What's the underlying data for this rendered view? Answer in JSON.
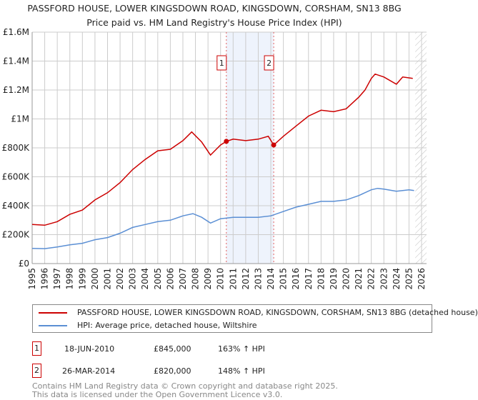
{
  "title": "PASSFORD HOUSE, LOWER KINGSDOWN ROAD, KINGSDOWN, CORSHAM, SN13 8BG",
  "subtitle": "Price paid vs. HM Land Registry's House Price Index (HPI)",
  "colors": {
    "property": "#cc0000",
    "hpi": "#5b8fd4",
    "shade": "#eef3fc"
  },
  "chart_data": {
    "type": "line",
    "title": "PASSFORD HOUSE, LOWER KINGSDOWN ROAD, KINGSDOWN, CORSHAM, SN13 8BG",
    "xlim": [
      1995,
      2026
    ],
    "ylim": [
      0,
      1600000
    ],
    "y_ticks": [
      {
        "v": 0,
        "label": "£0"
      },
      {
        "v": 200000,
        "label": "£200K"
      },
      {
        "v": 400000,
        "label": "£400K"
      },
      {
        "v": 600000,
        "label": "£600K"
      },
      {
        "v": 800000,
        "label": "£800K"
      },
      {
        "v": 1000000,
        "label": "£1M"
      },
      {
        "v": 1200000,
        "label": "£1.2M"
      },
      {
        "v": 1400000,
        "label": "£1.4M"
      },
      {
        "v": 1600000,
        "label": "£1.6M"
      }
    ],
    "x_ticks": [
      "1995",
      "1996",
      "1997",
      "1998",
      "1999",
      "2000",
      "2001",
      "2002",
      "2003",
      "2004",
      "2005",
      "2006",
      "2007",
      "2008",
      "2009",
      "2010",
      "2011",
      "2012",
      "2013",
      "2014",
      "2015",
      "2016",
      "2017",
      "2018",
      "2019",
      "2020",
      "2021",
      "2022",
      "2023",
      "2024",
      "2025",
      "2026"
    ],
    "grid": true,
    "shaded_range": [
      2010.46,
      2014.23
    ],
    "forecast_hatch_from": 2025.5,
    "series": [
      {
        "name": "PASSFORD HOUSE, LOWER KINGSDOWN ROAD, KINGSDOWN, CORSHAM, SN13 8BG (detached house)",
        "color": "#cc0000",
        "x": [
          1995,
          1996,
          1997,
          1998,
          1999,
          2000,
          2001,
          2002,
          2003,
          2004,
          2005,
          2006,
          2007,
          2007.7,
          2008.5,
          2009.2,
          2010,
          2010.46,
          2011,
          2012,
          2013,
          2013.8,
          2014.23,
          2015,
          2016,
          2017,
          2018,
          2019,
          2020,
          2021,
          2021.5,
          2022,
          2022.3,
          2023,
          2024,
          2024.5,
          2025.3
        ],
        "y": [
          270000,
          265000,
          290000,
          340000,
          370000,
          440000,
          490000,
          560000,
          650000,
          720000,
          780000,
          790000,
          850000,
          910000,
          840000,
          750000,
          820000,
          845000,
          860000,
          850000,
          860000,
          880000,
          820000,
          880000,
          950000,
          1020000,
          1060000,
          1050000,
          1070000,
          1150000,
          1200000,
          1280000,
          1310000,
          1290000,
          1240000,
          1290000,
          1280000
        ]
      },
      {
        "name": "HPI: Average price, detached house, Wiltshire",
        "color": "#5b8fd4",
        "x": [
          1995,
          1996,
          1997,
          1998,
          1999,
          2000,
          2001,
          2002,
          2003,
          2004,
          2005,
          2006,
          2007,
          2007.8,
          2008.5,
          2009.2,
          2010,
          2011,
          2012,
          2013,
          2014,
          2015,
          2016,
          2017,
          2018,
          2019,
          2020,
          2021,
          2022,
          2022.5,
          2023,
          2024,
          2025,
          2025.4
        ],
        "y": [
          105000,
          103000,
          115000,
          130000,
          140000,
          165000,
          180000,
          210000,
          250000,
          270000,
          290000,
          300000,
          330000,
          345000,
          320000,
          280000,
          310000,
          320000,
          320000,
          320000,
          330000,
          360000,
          390000,
          410000,
          430000,
          430000,
          440000,
          470000,
          510000,
          520000,
          515000,
          500000,
          510000,
          505000
        ]
      }
    ],
    "annotations": [
      {
        "label": "1",
        "x": 2010.46,
        "y": 845000
      },
      {
        "label": "2",
        "x": 2014.23,
        "y": 820000
      }
    ]
  },
  "legend": {
    "property": "PASSFORD HOUSE, LOWER KINGSDOWN ROAD, KINGSDOWN, CORSHAM, SN13 8BG (detached house)",
    "hpi": "HPI: Average price, detached house, Wiltshire"
  },
  "sales": [
    {
      "num": "1",
      "date": "18-JUN-2010",
      "price": "£845,000",
      "hpi": "163% ↑ HPI"
    },
    {
      "num": "2",
      "date": "26-MAR-2014",
      "price": "£820,000",
      "hpi": "148% ↑ HPI"
    }
  ],
  "footer": {
    "line1": "Contains HM Land Registry data © Crown copyright and database right 2025.",
    "line2": "This data is licensed under the Open Government Licence v3.0."
  }
}
